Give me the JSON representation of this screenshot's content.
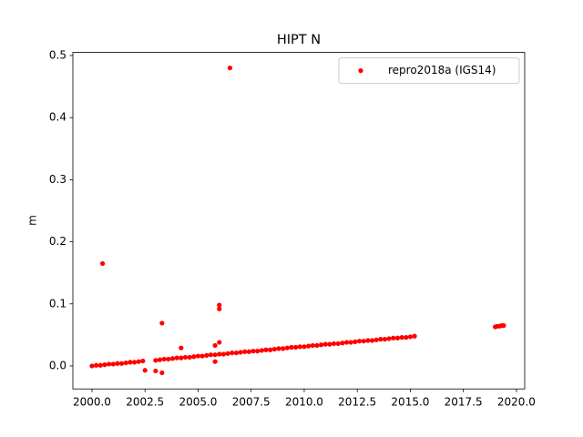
{
  "chart_data": {
    "type": "scatter",
    "title": "HIPT N",
    "ylabel": "m",
    "series": [
      {
        "name": "repro2018a (IGS14)",
        "color": "#ff0000",
        "x": [
          2000.0,
          2000.2,
          2000.4,
          2000.6,
          2000.8,
          2001.0,
          2001.2,
          2001.4,
          2001.6,
          2001.8,
          2002.0,
          2002.2,
          2002.4,
          2003.0,
          2003.2,
          2003.4,
          2003.6,
          2003.8,
          2004.0,
          2004.2,
          2004.4,
          2004.6,
          2004.8,
          2005.0,
          2005.2,
          2005.4,
          2005.6,
          2005.8,
          2006.0,
          2006.2,
          2006.4,
          2006.6,
          2006.8,
          2007.0,
          2007.2,
          2007.4,
          2007.6,
          2007.8,
          2008.0,
          2008.2,
          2008.4,
          2008.6,
          2008.8,
          2009.0,
          2009.2,
          2009.4,
          2009.6,
          2009.8,
          2010.0,
          2010.2,
          2010.4,
          2010.6,
          2010.8,
          2011.0,
          2011.2,
          2011.4,
          2011.6,
          2011.8,
          2012.0,
          2012.2,
          2012.4,
          2012.6,
          2012.8,
          2013.0,
          2013.2,
          2013.4,
          2013.6,
          2013.8,
          2014.0,
          2014.2,
          2014.4,
          2014.6,
          2014.8,
          2015.0,
          2015.2,
          2019.0,
          2019.1,
          2019.2,
          2019.3,
          2019.4,
          2000.5,
          2003.3,
          2006.0,
          2006.0,
          2006.5,
          2004.2,
          2005.8,
          2006.0,
          2002.5,
          2003.0,
          2003.3,
          2005.8
        ],
        "values": [
          0.0,
          0.001,
          0.001,
          0.002,
          0.003,
          0.003,
          0.004,
          0.004,
          0.005,
          0.006,
          0.006,
          0.007,
          0.008,
          0.009,
          0.01,
          0.011,
          0.011,
          0.012,
          0.013,
          0.013,
          0.014,
          0.014,
          0.015,
          0.016,
          0.016,
          0.017,
          0.018,
          0.018,
          0.019,
          0.019,
          0.02,
          0.021,
          0.021,
          0.022,
          0.023,
          0.023,
          0.024,
          0.024,
          0.025,
          0.026,
          0.026,
          0.027,
          0.028,
          0.028,
          0.029,
          0.03,
          0.03,
          0.031,
          0.031,
          0.032,
          0.033,
          0.033,
          0.034,
          0.035,
          0.035,
          0.036,
          0.036,
          0.037,
          0.038,
          0.038,
          0.039,
          0.04,
          0.04,
          0.041,
          0.041,
          0.042,
          0.043,
          0.043,
          0.044,
          0.045,
          0.045,
          0.046,
          0.046,
          0.047,
          0.048,
          0.063,
          0.064,
          0.064,
          0.065,
          0.065,
          0.165,
          0.069,
          0.098,
          0.092,
          0.48,
          0.029,
          0.033,
          0.038,
          -0.007,
          -0.008,
          -0.011,
          0.007
        ]
      }
    ],
    "xlim": [
      1999.1,
      2020.39
    ],
    "xticks": [
      {
        "value": 2000,
        "label": "2000.0"
      },
      {
        "value": 2002.5,
        "label": "2002.5"
      },
      {
        "value": 2005,
        "label": "2005.0"
      },
      {
        "value": 2007.5,
        "label": "2007.5"
      },
      {
        "value": 2010,
        "label": "2010.0"
      },
      {
        "value": 2012.5,
        "label": "2012.5"
      },
      {
        "value": 2015,
        "label": "2015.0"
      },
      {
        "value": 2017.5,
        "label": "2017.5"
      },
      {
        "value": 2020,
        "label": "2020.0"
      }
    ],
    "ylim": [
      -0.037,
      0.505
    ],
    "yticks": [
      {
        "value": 0,
        "label": "0.0"
      },
      {
        "value": 0.1,
        "label": "0.1"
      },
      {
        "value": 0.2,
        "label": "0.2"
      },
      {
        "value": 0.3,
        "label": "0.3"
      },
      {
        "value": 0.4,
        "label": "0.4"
      },
      {
        "value": 0.5,
        "label": "0.5"
      }
    ],
    "legend": "upper right"
  }
}
